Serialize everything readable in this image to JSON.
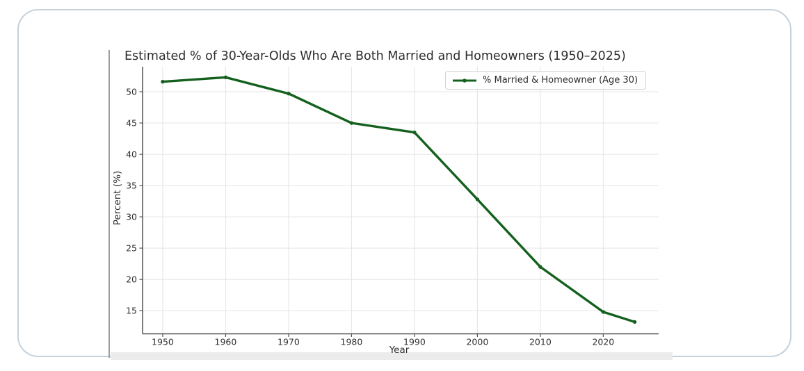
{
  "card": {
    "border_color": "#c5d1db",
    "background": "#ffffff",
    "divider_color": "#9e9e9e",
    "bottom_strip_color": "#ebebeb"
  },
  "chart_data": {
    "type": "line",
    "title": "Estimated % of 30-Year-Olds Who Are Both Married and Homeowners (1950–2025)",
    "xlabel": "Year",
    "ylabel": "Percent (%)",
    "x": [
      1950,
      1960,
      1970,
      1980,
      1990,
      2000,
      2010,
      2020,
      2025
    ],
    "series": [
      {
        "name": "% Married & Homeowner (Age 30)",
        "color": "#14601e",
        "marker": "circle",
        "values": [
          51.6,
          52.3,
          49.7,
          45.0,
          43.5,
          32.8,
          22.0,
          14.8,
          13.2
        ]
      }
    ],
    "x_ticks": [
      1950,
      1960,
      1970,
      1980,
      1990,
      2000,
      2010,
      2020
    ],
    "y_ticks": [
      15,
      20,
      25,
      30,
      35,
      40,
      45,
      50
    ],
    "xlim": [
      1946.8,
      2028.8
    ],
    "ylim": [
      11.3,
      54.0
    ],
    "grid": true,
    "grid_color": "#e4e4e4",
    "axis_color": "#515151",
    "tick_label_color": "#303030",
    "title_color": "#2d2d2d",
    "legend_position": "upper right"
  }
}
